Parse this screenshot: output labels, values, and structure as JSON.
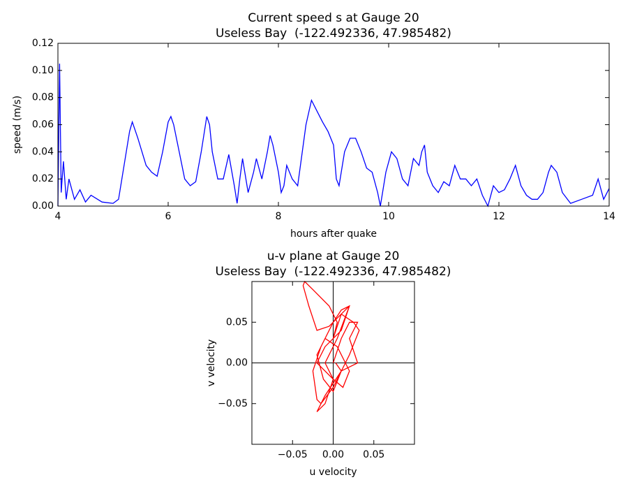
{
  "chart_data": [
    {
      "type": "line",
      "title": "Current speed s at Gauge 20",
      "subtitle": "Useless Bay  (-122.492336, 47.985482)",
      "xlabel": "hours after quake",
      "ylabel": "speed (m/s)",
      "xlim": [
        4,
        14
      ],
      "ylim": [
        0,
        0.12
      ],
      "xticks": [
        4,
        6,
        8,
        10,
        12,
        14
      ],
      "yticks": [
        {
          "value": 0,
          "label": "0.00"
        },
        {
          "value": 0.02,
          "label": "0.02"
        },
        {
          "value": 0.04,
          "label": "0.04"
        },
        {
          "value": 0.06,
          "label": "0.06"
        },
        {
          "value": 0.08,
          "label": "0.08"
        },
        {
          "value": 0.1,
          "label": "0.10"
        },
        {
          "value": 0.12,
          "label": "0.12"
        }
      ],
      "series": [
        {
          "color": "#0000ff",
          "x": [
            4.0,
            4.03,
            4.06,
            4.1,
            4.15,
            4.2,
            4.3,
            4.4,
            4.5,
            4.6,
            4.8,
            5.0,
            5.1,
            5.2,
            5.3,
            5.35,
            5.45,
            5.6,
            5.7,
            5.8,
            5.9,
            6.0,
            6.05,
            6.1,
            6.2,
            6.3,
            6.4,
            6.5,
            6.6,
            6.7,
            6.75,
            6.8,
            6.9,
            7.0,
            7.1,
            7.2,
            7.25,
            7.3,
            7.35,
            7.45,
            7.55,
            7.6,
            7.7,
            7.8,
            7.85,
            7.9,
            8.0,
            8.05,
            8.1,
            8.15,
            8.25,
            8.35,
            8.5,
            8.6,
            8.7,
            8.8,
            8.9,
            9.0,
            9.05,
            9.1,
            9.2,
            9.3,
            9.4,
            9.5,
            9.6,
            9.7,
            9.8,
            9.85,
            9.95,
            10.05,
            10.15,
            10.25,
            10.35,
            10.45,
            10.55,
            10.6,
            10.65,
            10.7,
            10.8,
            10.9,
            11.0,
            11.1,
            11.2,
            11.3,
            11.4,
            11.5,
            11.6,
            11.7,
            11.8,
            11.9,
            12.0,
            12.1,
            12.2,
            12.3,
            12.4,
            12.5,
            12.6,
            12.7,
            12.8,
            12.9,
            12.95,
            13.05,
            13.15,
            13.3,
            13.5,
            13.7,
            13.8,
            13.9,
            14.0
          ],
          "values": [
            0.0,
            0.105,
            0.01,
            0.033,
            0.005,
            0.02,
            0.005,
            0.012,
            0.003,
            0.008,
            0.003,
            0.002,
            0.005,
            0.03,
            0.055,
            0.062,
            0.05,
            0.03,
            0.025,
            0.022,
            0.04,
            0.062,
            0.066,
            0.06,
            0.04,
            0.02,
            0.015,
            0.018,
            0.04,
            0.066,
            0.06,
            0.04,
            0.02,
            0.02,
            0.038,
            0.015,
            0.002,
            0.02,
            0.035,
            0.01,
            0.025,
            0.035,
            0.02,
            0.04,
            0.052,
            0.045,
            0.025,
            0.01,
            0.015,
            0.03,
            0.02,
            0.015,
            0.06,
            0.078,
            0.07,
            0.062,
            0.055,
            0.045,
            0.02,
            0.015,
            0.04,
            0.05,
            0.05,
            0.04,
            0.028,
            0.025,
            0.01,
            0.0,
            0.025,
            0.04,
            0.035,
            0.02,
            0.015,
            0.035,
            0.03,
            0.04,
            0.045,
            0.025,
            0.015,
            0.01,
            0.018,
            0.015,
            0.03,
            0.02,
            0.02,
            0.015,
            0.02,
            0.008,
            0.0,
            0.015,
            0.01,
            0.012,
            0.02,
            0.03,
            0.015,
            0.008,
            0.005,
            0.005,
            0.01,
            0.025,
            0.03,
            0.025,
            0.01,
            0.002,
            0.005,
            0.008,
            0.02,
            0.005,
            0.013
          ]
        }
      ]
    },
    {
      "type": "scatter-line",
      "title": "u-v plane at Gauge 20",
      "subtitle": "Useless Bay  (-122.492336, 47.985482)",
      "xlabel": "u velocity",
      "ylabel": "v velocity",
      "xlim": [
        -0.1,
        0.1
      ],
      "ylim": [
        -0.1,
        0.1
      ],
      "xticks": [
        {
          "value": -0.05,
          "label": "−0.05"
        },
        {
          "value": 0,
          "label": "0.00"
        },
        0.05
      ],
      "yticks": [
        {
          "value": -0.05,
          "label": "−0.05"
        },
        {
          "value": 0,
          "label": "0.00"
        },
        0.05
      ],
      "series": [
        {
          "color": "#ff0000",
          "x": [
            0.0,
            0.01,
            0.02,
            0.03,
            0.02,
            0.03,
            0.01,
            -0.01,
            -0.02,
            -0.01,
            0.0,
            -0.02,
            -0.01,
            0.01,
            0.02,
            0.01,
            -0.005,
            -0.02,
            -0.03,
            -0.037,
            -0.035,
            -0.025,
            -0.005,
            0.005,
            0.0,
            0.01,
            0.025,
            0.032,
            0.02,
            0.0,
            -0.015,
            -0.02,
            -0.025,
            -0.015,
            0.0,
            0.01,
            0.02,
            0.005,
            -0.01,
            0.0,
            0.012,
            0.02,
            0.005,
            -0.01,
            -0.02,
            -0.012,
            0.0,
            0.01,
            0.003
          ],
          "y": [
            0.0,
            0.03,
            0.05,
            0.05,
            0.03,
            0.0,
            -0.01,
            -0.04,
            -0.06,
            -0.05,
            -0.02,
            0.0,
            0.02,
            0.04,
            0.07,
            0.06,
            0.045,
            0.04,
            0.07,
            0.095,
            0.1,
            0.09,
            0.07,
            0.05,
            0.03,
            0.06,
            0.05,
            0.04,
            0.01,
            -0.03,
            -0.05,
            -0.045,
            -0.01,
            0.02,
            0.05,
            0.065,
            0.07,
            0.03,
            0.0,
            -0.02,
            -0.03,
            -0.01,
            0.02,
            0.03,
            0.01,
            -0.02,
            -0.035,
            -0.01,
            0.0
          ]
        }
      ]
    }
  ]
}
